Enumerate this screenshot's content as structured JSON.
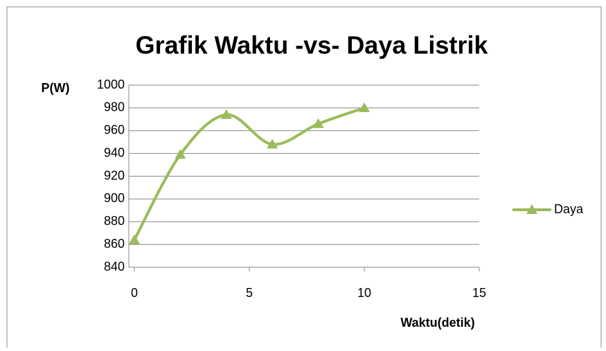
{
  "chart_data": {
    "type": "line",
    "title": "Grafik Waktu -vs- Daya Listrik",
    "ylabel": "P(W)",
    "xlabel": "Waktu(detik)",
    "x": [
      0,
      2,
      4,
      6,
      8,
      10
    ],
    "series": [
      {
        "name": "Daya",
        "color": "#9bbb59",
        "values": [
          864,
          939,
          974,
          948,
          966,
          980
        ]
      }
    ],
    "xlim": [
      0,
      15
    ],
    "xticks": [
      0,
      5,
      10,
      15
    ],
    "ylim": [
      840,
      1000
    ],
    "yticks": [
      840,
      860,
      880,
      900,
      920,
      940,
      960,
      980,
      1000
    ],
    "grid": true,
    "smooth": true,
    "legend": "right"
  }
}
